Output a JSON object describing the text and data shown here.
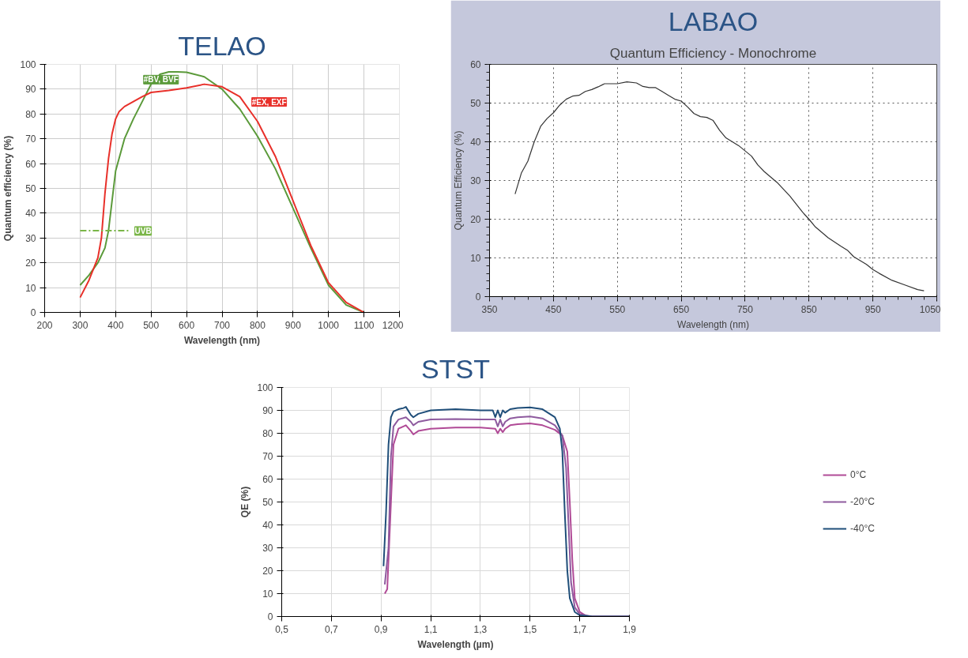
{
  "chart_data": [
    {
      "type": "line",
      "title": "TELAO",
      "xlabel": "Wavelength (nm)",
      "ylabel": "Quantum efficiency (%)",
      "xlim": [
        200,
        1200
      ],
      "ylim": [
        0,
        100
      ],
      "xticks": [
        200,
        300,
        400,
        500,
        600,
        700,
        800,
        900,
        1000,
        1100,
        1200
      ],
      "yticks": [
        0,
        10,
        20,
        30,
        40,
        50,
        60,
        70,
        80,
        90,
        100
      ],
      "grid": true,
      "legend": false,
      "line_style": "solid",
      "series": [
        {
          "name": "#BV, BVF",
          "color": "#5b9a3a",
          "x": [
            300,
            325,
            350,
            370,
            380,
            390,
            400,
            425,
            450,
            475,
            500,
            525,
            550,
            575,
            600,
            650,
            700,
            750,
            800,
            850,
            900,
            950,
            1000,
            1050,
            1100
          ],
          "values": [
            11,
            15,
            20,
            26,
            33,
            45,
            57,
            70,
            78,
            85,
            92,
            96,
            97,
            97,
            96.8,
            95,
            90,
            82,
            71,
            58,
            42,
            26,
            11,
            3,
            0
          ]
        },
        {
          "name": "#EX, EXF",
          "color": "#e8302a",
          "x": [
            300,
            325,
            350,
            360,
            370,
            380,
            390,
            400,
            410,
            425,
            450,
            475,
            500,
            550,
            600,
            650,
            700,
            750,
            800,
            850,
            900,
            950,
            1000,
            1050,
            1100
          ],
          "values": [
            6,
            13,
            22,
            30,
            48,
            62,
            72,
            78,
            81,
            83,
            85,
            87,
            88.7,
            89.5,
            90.5,
            92,
            91,
            87,
            77,
            63,
            45,
            27,
            12,
            4,
            0
          ]
        },
        {
          "name": "UVB",
          "color": "#7ab648",
          "line_style": "dashdot",
          "x": [
            300,
            440
          ],
          "values": [
            33,
            33
          ]
        }
      ]
    },
    {
      "type": "line",
      "title": "LABAO",
      "subtitle": "Quantum Efficiency - Monochrome",
      "xlabel": "Wavelength (nm)",
      "ylabel": "Quantum Efficiency (%)",
      "xlim": [
        350,
        1050
      ],
      "ylim": [
        0,
        60
      ],
      "xticks": [
        350,
        450,
        550,
        650,
        750,
        850,
        950,
        1050
      ],
      "yticks": [
        0,
        10,
        20,
        30,
        40,
        50,
        60
      ],
      "grid": true,
      "series": [
        {
          "color": "#333333",
          "x": [
            390,
            400,
            410,
            420,
            430,
            440,
            450,
            460,
            470,
            480,
            490,
            500,
            510,
            520,
            530,
            540,
            550,
            565,
            580,
            590,
            600,
            610,
            620,
            630,
            640,
            650,
            660,
            670,
            680,
            690,
            700,
            710,
            720,
            740,
            760,
            770,
            780,
            800,
            820,
            840,
            850,
            860,
            880,
            900,
            910,
            920,
            940,
            950,
            960,
            980,
            1000,
            1020,
            1030
          ],
          "values": [
            26.5,
            32,
            35,
            40,
            44,
            46,
            47.5,
            49.5,
            51,
            51.8,
            52,
            53,
            53.5,
            54.2,
            55,
            55,
            55,
            55.5,
            55.2,
            54.3,
            54,
            54,
            53,
            52,
            51,
            50.5,
            49,
            47.3,
            46.5,
            46.3,
            45.5,
            43,
            41,
            39,
            36.3,
            34,
            32.3,
            29.5,
            26,
            21.8,
            20,
            18,
            15.2,
            13,
            12,
            10.3,
            8.3,
            7,
            6,
            4.2,
            3,
            1.8,
            1.5
          ]
        }
      ]
    },
    {
      "type": "line",
      "title": "STST",
      "xlabel": "Wavelength (µm)",
      "ylabel": "QE (%)",
      "xlim": [
        0.5,
        1.9
      ],
      "ylim": [
        0,
        100
      ],
      "xticks": [
        {
          "value": 0.5,
          "label": "0,5"
        },
        {
          "value": 0.7,
          "label": "0,7"
        },
        {
          "value": 0.9,
          "label": "0,9"
        },
        {
          "value": 1.1,
          "label": "1,1"
        },
        {
          "value": 1.3,
          "label": "1,3"
        },
        {
          "value": 1.5,
          "label": "1,5"
        },
        {
          "value": 1.7,
          "label": "1,7"
        },
        {
          "value": 1.9,
          "label": "1,9"
        }
      ],
      "yticks": [
        0,
        10,
        20,
        30,
        40,
        50,
        60,
        70,
        80,
        90,
        100
      ],
      "grid": true,
      "legend": "right",
      "series": [
        {
          "name": "0°C",
          "color": "#b04a96",
          "x": [
            0.915,
            0.925,
            0.94,
            0.95,
            0.97,
            0.99,
            1.0,
            1.02,
            1.03,
            1.05,
            1.1,
            1.2,
            1.3,
            1.36,
            1.37,
            1.38,
            1.39,
            1.4,
            1.42,
            1.45,
            1.5,
            1.55,
            1.6,
            1.63,
            1.65,
            1.66,
            1.67,
            1.68,
            1.7,
            1.73,
            1.9
          ],
          "values": [
            10,
            12,
            50,
            75,
            82,
            83,
            83.5,
            81,
            79.5,
            81,
            82,
            82.5,
            82.5,
            82,
            80,
            82,
            80.5,
            82,
            83.5,
            84,
            84.3,
            83.5,
            81.5,
            79,
            72,
            50,
            25,
            8,
            2,
            0,
            0
          ]
        },
        {
          "name": "-20°C",
          "color": "#8e5a9e",
          "x": [
            0.915,
            0.93,
            0.94,
            0.95,
            0.97,
            1.0,
            1.02,
            1.03,
            1.05,
            1.1,
            1.2,
            1.3,
            1.36,
            1.37,
            1.38,
            1.39,
            1.4,
            1.42,
            1.45,
            1.5,
            1.55,
            1.6,
            1.63,
            1.645,
            1.655,
            1.665,
            1.68,
            1.7,
            1.75,
            1.9
          ],
          "values": [
            14,
            30,
            70,
            83,
            86,
            87,
            85,
            83.5,
            85,
            86,
            86.2,
            86,
            86,
            83,
            86,
            83,
            85,
            86.5,
            87,
            87.3,
            86.5,
            83.5,
            79,
            65,
            40,
            15,
            4,
            1,
            0,
            0
          ]
        },
        {
          "name": "-40°C",
          "color": "#1f4e79",
          "x": [
            0.91,
            0.92,
            0.93,
            0.94,
            0.95,
            0.97,
            0.99,
            1.0,
            1.02,
            1.03,
            1.05,
            1.1,
            1.2,
            1.3,
            1.35,
            1.36,
            1.37,
            1.38,
            1.39,
            1.4,
            1.42,
            1.45,
            1.5,
            1.55,
            1.6,
            1.62,
            1.63,
            1.64,
            1.65,
            1.66,
            1.68,
            1.7,
            1.75,
            1.9
          ],
          "values": [
            22,
            45,
            75,
            87,
            89.5,
            90.5,
            91,
            91.5,
            88,
            87,
            88.5,
            90,
            90.5,
            90,
            90,
            87,
            90,
            87,
            90,
            89,
            90.5,
            91,
            91.3,
            90.5,
            87,
            82,
            72,
            45,
            20,
            8,
            2,
            0.5,
            0,
            0
          ]
        }
      ]
    }
  ]
}
